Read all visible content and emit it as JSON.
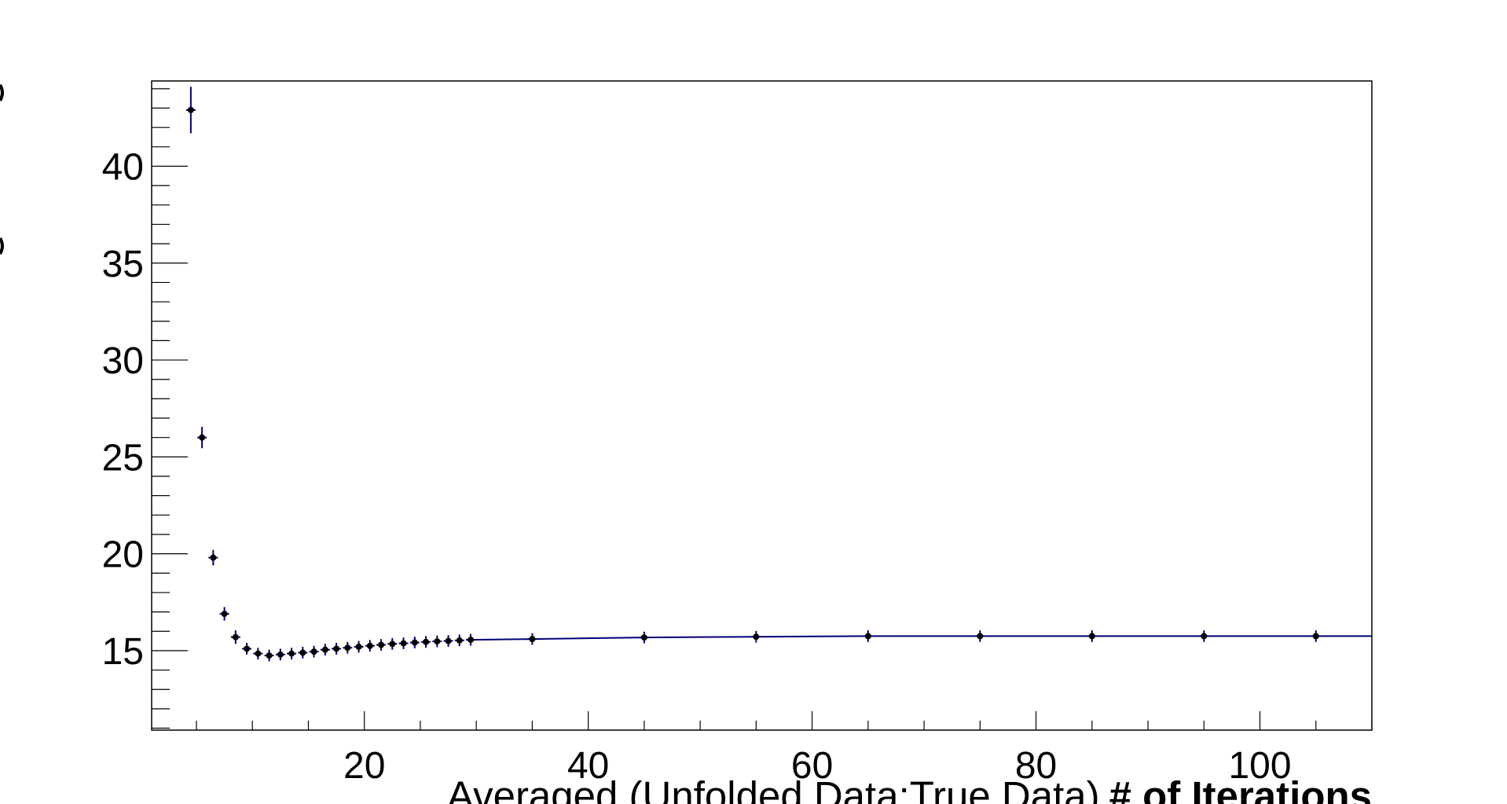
{
  "chart_data": {
    "type": "scatter",
    "title": "",
    "xlabel": "Averaged (Unfolded Data:True Data)",
    "xlabel_bold": "# of Iterations",
    "ylabel": "",
    "xlim": [
      1,
      110
    ],
    "ylim": [
      10.9,
      44.4
    ],
    "x_ticks": [
      20,
      40,
      60,
      80,
      100
    ],
    "y_ticks": [
      15,
      20,
      25,
      30,
      35,
      40
    ],
    "grid": false,
    "marker_color": "#000000",
    "error_color": "#00007a",
    "fit_color": "#00007a",
    "series": [
      {
        "points": [
          {
            "x": 4.5,
            "y": 42.9,
            "err": 1.2
          },
          {
            "x": 5.5,
            "y": 26.0,
            "err": 0.55
          },
          {
            "x": 6.5,
            "y": 19.8,
            "err": 0.4
          },
          {
            "x": 7.5,
            "y": 16.9,
            "err": 0.35
          },
          {
            "x": 8.5,
            "y": 15.7,
            "err": 0.35
          },
          {
            "x": 9.5,
            "y": 15.1,
            "err": 0.3
          },
          {
            "x": 10.5,
            "y": 14.85,
            "err": 0.3
          },
          {
            "x": 11.5,
            "y": 14.75,
            "err": 0.3
          },
          {
            "x": 12.5,
            "y": 14.8,
            "err": 0.3
          },
          {
            "x": 13.5,
            "y": 14.85,
            "err": 0.3
          },
          {
            "x": 14.5,
            "y": 14.9,
            "err": 0.3
          },
          {
            "x": 15.5,
            "y": 14.95,
            "err": 0.3
          },
          {
            "x": 16.5,
            "y": 15.05,
            "err": 0.3
          },
          {
            "x": 17.5,
            "y": 15.1,
            "err": 0.3
          },
          {
            "x": 18.5,
            "y": 15.15,
            "err": 0.3
          },
          {
            "x": 19.5,
            "y": 15.2,
            "err": 0.3
          },
          {
            "x": 20.5,
            "y": 15.25,
            "err": 0.3
          },
          {
            "x": 21.5,
            "y": 15.3,
            "err": 0.3
          },
          {
            "x": 22.5,
            "y": 15.35,
            "err": 0.3
          },
          {
            "x": 23.5,
            "y": 15.38,
            "err": 0.3
          },
          {
            "x": 24.5,
            "y": 15.42,
            "err": 0.3
          },
          {
            "x": 25.5,
            "y": 15.45,
            "err": 0.3
          },
          {
            "x": 26.5,
            "y": 15.48,
            "err": 0.3
          },
          {
            "x": 27.5,
            "y": 15.5,
            "err": 0.3
          },
          {
            "x": 28.5,
            "y": 15.53,
            "err": 0.3
          },
          {
            "x": 29.5,
            "y": 15.56,
            "err": 0.3
          },
          {
            "x": 35,
            "y": 15.6,
            "err": 0.3
          },
          {
            "x": 45,
            "y": 15.68,
            "err": 0.3
          },
          {
            "x": 55,
            "y": 15.72,
            "err": 0.3
          },
          {
            "x": 65,
            "y": 15.75,
            "err": 0.3
          },
          {
            "x": 75,
            "y": 15.75,
            "err": 0.3
          },
          {
            "x": 85,
            "y": 15.75,
            "err": 0.3
          },
          {
            "x": 95,
            "y": 15.75,
            "err": 0.3
          },
          {
            "x": 105,
            "y": 15.75,
            "err": 0.3
          }
        ]
      }
    ]
  }
}
